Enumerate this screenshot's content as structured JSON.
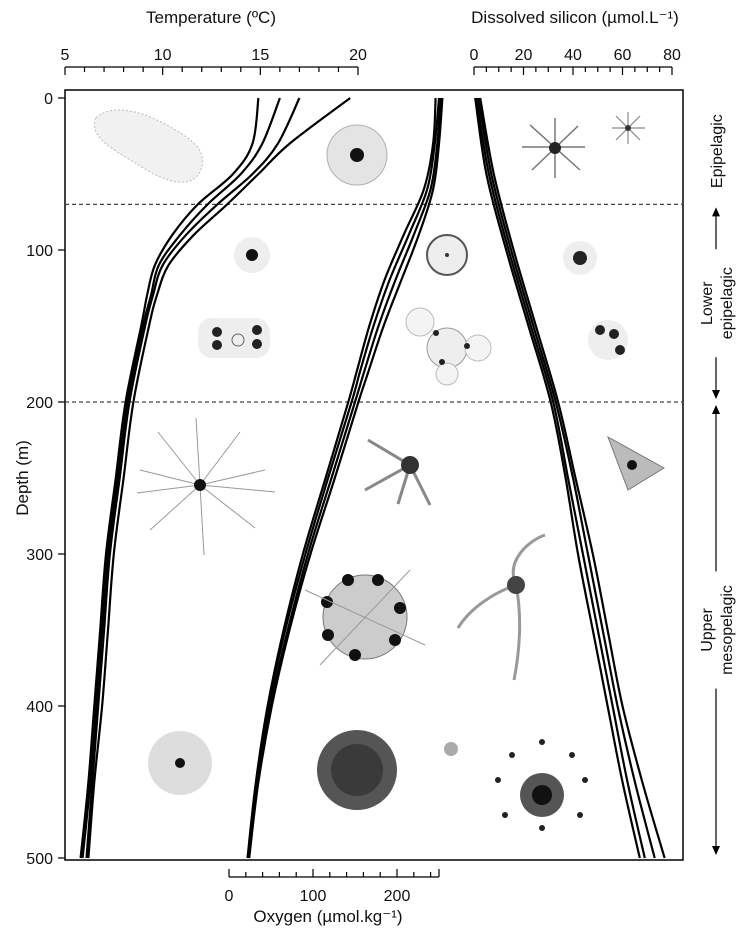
{
  "chart_data": {
    "type": "line",
    "axes": {
      "temperature": {
        "label": "Temperature (ºC)",
        "range": [
          5,
          20
        ],
        "major_ticks": [
          5,
          10,
          15,
          20
        ],
        "minor_step": 1,
        "position": "top-left"
      },
      "silicon": {
        "label": "Dissolved silicon (µmol.L⁻¹)",
        "range": [
          0,
          80
        ],
        "major_ticks": [
          0,
          20,
          40,
          60,
          80
        ],
        "minor_step": 5,
        "position": "top-right"
      },
      "oxygen": {
        "label": "Oxygen (µmol.kg⁻¹)",
        "range": [
          0,
          250
        ],
        "major_ticks": [
          0,
          100,
          200
        ],
        "minor_step": 20,
        "position": "bottom-center"
      },
      "depth": {
        "label": "Depth (m)",
        "range": [
          0,
          500
        ],
        "inverted": true,
        "ticks": [
          "0",
          "100",
          "200",
          "300",
          "400",
          "500"
        ]
      }
    },
    "zones": [
      {
        "name": "Epipelagic",
        "top": 0,
        "bottom": 70
      },
      {
        "name": "Lower epipelagic",
        "lines": [
          "Lower",
          "epipelagic"
        ],
        "top": 70,
        "bottom": 200
      },
      {
        "name": "Upper mesopelagic",
        "lines": [
          "Upper",
          "mesopelagic"
        ],
        "top": 200,
        "bottom": 500
      }
    ],
    "zone_boundaries": [
      70,
      200
    ],
    "series": [
      {
        "variable": "temperature",
        "points": [
          [
            0,
            14.9
          ],
          [
            30,
            14.6
          ],
          [
            50,
            13.6
          ],
          [
            70,
            11.8
          ],
          [
            90,
            10.5
          ],
          [
            110,
            9.6
          ],
          [
            130,
            9.2
          ],
          [
            150,
            8.9
          ],
          [
            200,
            8.1
          ],
          [
            250,
            7.6
          ],
          [
            300,
            7.1
          ],
          [
            350,
            6.8
          ],
          [
            400,
            6.5
          ],
          [
            450,
            6.2
          ],
          [
            500,
            5.8
          ]
        ]
      },
      {
        "variable": "temperature",
        "points": [
          [
            0,
            16.0
          ],
          [
            30,
            15.1
          ],
          [
            50,
            14.0
          ],
          [
            70,
            12.3
          ],
          [
            90,
            10.9
          ],
          [
            110,
            9.8
          ],
          [
            130,
            9.4
          ],
          [
            150,
            9.0
          ],
          [
            200,
            8.2
          ],
          [
            250,
            7.7
          ],
          [
            300,
            7.2
          ],
          [
            350,
            6.9
          ],
          [
            400,
            6.6
          ],
          [
            450,
            6.3
          ],
          [
            500,
            5.9
          ]
        ]
      },
      {
        "variable": "temperature",
        "points": [
          [
            0,
            17.0
          ],
          [
            30,
            15.9
          ],
          [
            50,
            14.6
          ],
          [
            70,
            12.8
          ],
          [
            90,
            11.2
          ],
          [
            110,
            10.0
          ],
          [
            130,
            9.5
          ],
          [
            150,
            9.1
          ],
          [
            200,
            8.3
          ],
          [
            250,
            7.8
          ],
          [
            300,
            7.3
          ],
          [
            350,
            7.0
          ],
          [
            400,
            6.7
          ],
          [
            450,
            6.4
          ],
          [
            500,
            6.1
          ]
        ]
      },
      {
        "variable": "temperature",
        "points": [
          [
            0,
            19.6
          ],
          [
            30,
            16.5
          ],
          [
            50,
            14.9
          ],
          [
            70,
            13.3
          ],
          [
            90,
            11.6
          ],
          [
            110,
            10.3
          ],
          [
            130,
            9.7
          ],
          [
            150,
            9.3
          ],
          [
            200,
            8.5
          ],
          [
            250,
            8.0
          ],
          [
            300,
            7.5
          ],
          [
            350,
            7.2
          ],
          [
            400,
            6.9
          ],
          [
            450,
            6.5
          ],
          [
            500,
            6.2
          ]
        ]
      },
      {
        "variable": "oxygen",
        "points": [
          [
            0,
            246
          ],
          [
            30,
            243
          ],
          [
            60,
            232
          ],
          [
            90,
            208
          ],
          [
            120,
            185
          ],
          [
            150,
            167
          ],
          [
            180,
            152
          ],
          [
            200,
            142
          ],
          [
            250,
            115
          ],
          [
            300,
            88
          ],
          [
            350,
            65
          ],
          [
            400,
            46
          ],
          [
            450,
            32
          ],
          [
            500,
            22
          ]
        ]
      },
      {
        "variable": "oxygen",
        "points": [
          [
            0,
            250
          ],
          [
            30,
            245
          ],
          [
            60,
            236
          ],
          [
            90,
            214
          ],
          [
            120,
            191
          ],
          [
            150,
            172
          ],
          [
            180,
            156
          ],
          [
            200,
            146
          ],
          [
            250,
            118
          ],
          [
            300,
            91
          ],
          [
            350,
            67
          ],
          [
            400,
            47
          ],
          [
            450,
            33
          ],
          [
            500,
            23
          ]
        ]
      },
      {
        "variable": "oxygen",
        "points": [
          [
            0,
            252
          ],
          [
            30,
            248
          ],
          [
            60,
            240
          ],
          [
            90,
            220
          ],
          [
            120,
            198
          ],
          [
            150,
            178
          ],
          [
            180,
            161
          ],
          [
            200,
            150
          ],
          [
            250,
            122
          ],
          [
            300,
            94
          ],
          [
            350,
            70
          ],
          [
            400,
            49
          ],
          [
            450,
            34
          ],
          [
            500,
            23
          ]
        ]
      },
      {
        "variable": "oxygen",
        "points": [
          [
            0,
            254
          ],
          [
            30,
            250
          ],
          [
            60,
            243
          ],
          [
            90,
            226
          ],
          [
            120,
            205
          ],
          [
            150,
            184
          ],
          [
            180,
            166
          ],
          [
            200,
            154
          ],
          [
            250,
            126
          ],
          [
            300,
            97
          ],
          [
            350,
            72
          ],
          [
            400,
            51
          ],
          [
            450,
            35
          ],
          [
            500,
            24
          ]
        ]
      },
      {
        "variable": "silicon",
        "points": [
          [
            0,
            0.5
          ],
          [
            50,
            5
          ],
          [
            100,
            13
          ],
          [
            150,
            22
          ],
          [
            200,
            31
          ],
          [
            250,
            37
          ],
          [
            300,
            42
          ],
          [
            350,
            48
          ],
          [
            400,
            54
          ],
          [
            450,
            60
          ],
          [
            500,
            67
          ]
        ]
      },
      {
        "variable": "silicon",
        "points": [
          [
            0,
            1.0
          ],
          [
            50,
            6
          ],
          [
            100,
            14
          ],
          [
            150,
            23
          ],
          [
            200,
            32
          ],
          [
            250,
            38
          ],
          [
            300,
            44
          ],
          [
            350,
            50
          ],
          [
            400,
            56
          ],
          [
            450,
            62
          ],
          [
            500,
            69
          ]
        ]
      },
      {
        "variable": "silicon",
        "points": [
          [
            0,
            1.8
          ],
          [
            50,
            7
          ],
          [
            100,
            15
          ],
          [
            150,
            24
          ],
          [
            200,
            33
          ],
          [
            250,
            40
          ],
          [
            300,
            46
          ],
          [
            350,
            52
          ],
          [
            400,
            58
          ],
          [
            450,
            65
          ],
          [
            500,
            73
          ]
        ]
      },
      {
        "variable": "silicon",
        "points": [
          [
            0,
            2.5
          ],
          [
            50,
            8
          ],
          [
            100,
            16
          ],
          [
            150,
            25
          ],
          [
            200,
            34
          ],
          [
            250,
            41
          ],
          [
            300,
            48
          ],
          [
            350,
            54
          ],
          [
            400,
            60
          ],
          [
            450,
            68
          ],
          [
            500,
            77
          ]
        ]
      }
    ]
  }
}
